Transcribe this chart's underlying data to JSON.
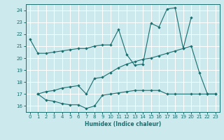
{
  "xlabel": "Humidex (Indice chaleur)",
  "bg_color": "#cce9ed",
  "line_color": "#1a6e6e",
  "grid_color": "#ffffff",
  "xlim": [
    -0.5,
    23.5
  ],
  "ylim": [
    15.5,
    24.5
  ],
  "xticks": [
    0,
    1,
    2,
    3,
    4,
    5,
    6,
    7,
    8,
    9,
    10,
    11,
    12,
    13,
    14,
    15,
    16,
    17,
    18,
    19,
    20,
    21,
    22,
    23
  ],
  "yticks": [
    16,
    17,
    18,
    19,
    20,
    21,
    22,
    23,
    24
  ],
  "series": [
    {
      "x": [
        0,
        1,
        2,
        3,
        4,
        5,
        6,
        7,
        8,
        9,
        10,
        11,
        12,
        13,
        14,
        15,
        16,
        17,
        18,
        19,
        20
      ],
      "y": [
        21.6,
        20.4,
        20.4,
        20.5,
        20.6,
        20.7,
        20.8,
        20.8,
        21.0,
        21.1,
        21.1,
        22.4,
        20.3,
        19.4,
        19.5,
        22.9,
        22.6,
        24.1,
        24.2,
        20.8,
        23.4
      ]
    },
    {
      "x": [
        1,
        2,
        3,
        4,
        5,
        6,
        7,
        8,
        9,
        10,
        11,
        12,
        13,
        14,
        15,
        16,
        17,
        18,
        20,
        21,
        22,
        23
      ],
      "y": [
        17.0,
        16.5,
        16.4,
        16.2,
        16.1,
        16.1,
        15.8,
        16.0,
        16.9,
        17.0,
        17.1,
        17.2,
        17.3,
        17.3,
        17.3,
        17.3,
        17.0,
        17.0,
        17.0,
        17.0,
        17.0,
        17.0
      ]
    },
    {
      "x": [
        1,
        2,
        3,
        4,
        5,
        6,
        7,
        8,
        9,
        10,
        11,
        12,
        13,
        14,
        15,
        16,
        17,
        18,
        19,
        20,
        21,
        22,
        23
      ],
      "y": [
        17.0,
        17.2,
        17.3,
        17.5,
        17.6,
        17.7,
        17.0,
        18.3,
        18.4,
        18.8,
        19.2,
        19.5,
        19.7,
        19.9,
        20.0,
        20.2,
        20.4,
        20.6,
        20.8,
        21.0,
        18.8,
        17.0,
        17.0
      ]
    }
  ]
}
